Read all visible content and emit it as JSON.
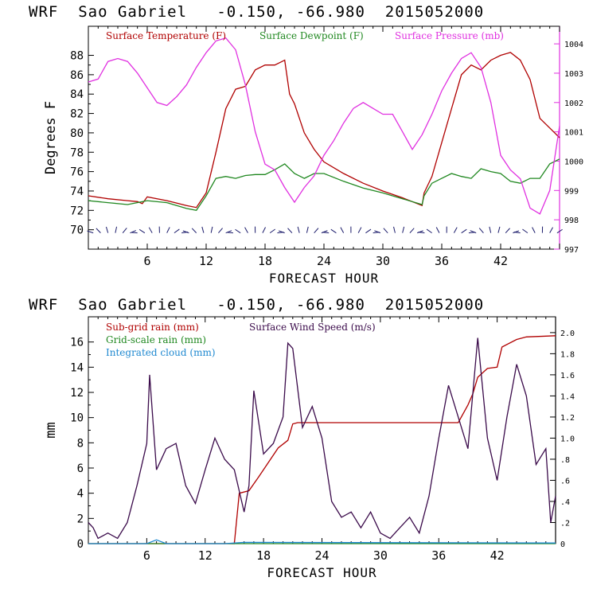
{
  "top_chart_title": "WRF  Sao Gabriel   -0.150, -66.980  2015052000",
  "bottom_chart_title": "WRF  Sao Gabriel   -0.150, -66.980  2015052000",
  "colors": {
    "temperature": "#b00000",
    "dewpoint": "#208820",
    "pressure": "#e030e0",
    "subgrid_rain": "#b00000",
    "gridscale_rain": "#208820",
    "integrated_cloud": "#1e88d0",
    "wind_speed": "#3a0a4a",
    "axis": "#000000"
  },
  "chart_data": [
    {
      "type": "line",
      "title": "WRF  Sao Gabriel   -0.150, -66.980  2015052000",
      "xlabel": "FORECAST HOUR",
      "ylabel": "Degrees F",
      "xlim": [
        0,
        48
      ],
      "ylim": [
        68,
        91
      ],
      "y2lim": [
        997,
        1004.6
      ],
      "xticks": [
        "6",
        "12",
        "18",
        "24",
        "30",
        "36",
        "42"
      ],
      "xtick_values": [
        6,
        12,
        18,
        24,
        30,
        36,
        42
      ],
      "yticks": [
        "70",
        "72",
        "74",
        "76",
        "78",
        "80",
        "82",
        "84",
        "86",
        "88"
      ],
      "ytick_values": [
        70,
        72,
        74,
        76,
        78,
        80,
        82,
        84,
        86,
        88
      ],
      "y2ticks": [
        "997",
        "998",
        "999",
        "1000",
        "1001",
        "1002",
        "1003",
        "1004"
      ],
      "y2tick_values": [
        997,
        998,
        999,
        1000,
        1001,
        1002,
        1003,
        1004
      ],
      "series": [
        {
          "name": "Surface Temperature (F)",
          "axis": "left",
          "x": [
            0,
            2,
            4,
            5,
            5.5,
            6,
            8,
            10,
            11,
            12,
            13,
            14,
            15,
            16,
            17,
            18,
            19,
            20,
            20.5,
            21,
            22,
            23,
            24,
            26,
            28,
            30,
            32,
            34,
            34.2,
            35,
            36,
            37,
            38,
            39,
            40,
            41,
            42,
            43,
            44,
            45,
            46,
            47,
            48
          ],
          "values": [
            73.5,
            73.2,
            73.0,
            72.9,
            72.7,
            73.4,
            73.0,
            72.5,
            72.3,
            73.8,
            78.0,
            82.5,
            84.5,
            84.8,
            86.5,
            87.0,
            87.0,
            87.5,
            84.0,
            83.0,
            80.0,
            78.3,
            77.0,
            75.8,
            74.8,
            74.0,
            73.3,
            72.5,
            73.8,
            75.5,
            79.0,
            82.5,
            86.0,
            87.0,
            86.5,
            87.5,
            88.0,
            88.3,
            87.5,
            85.5,
            81.5,
            80.5,
            79.5
          ]
        },
        {
          "name": "Surface Dewpoint (F)",
          "axis": "left",
          "x": [
            0,
            2,
            4,
            6,
            8,
            10,
            11,
            12,
            13,
            14,
            15,
            16,
            17,
            18,
            19,
            20,
            21,
            22,
            23,
            24,
            26,
            28,
            30,
            32,
            34,
            34.2,
            35,
            36,
            37,
            38,
            39,
            40,
            41,
            42,
            43,
            44,
            45,
            46,
            47,
            48
          ],
          "values": [
            73.0,
            72.8,
            72.6,
            73.0,
            72.8,
            72.2,
            72.0,
            73.5,
            75.3,
            75.5,
            75.3,
            75.6,
            75.7,
            75.7,
            76.2,
            76.8,
            75.8,
            75.3,
            75.8,
            75.8,
            75.0,
            74.3,
            73.8,
            73.2,
            72.6,
            73.5,
            74.8,
            75.3,
            75.8,
            75.5,
            75.3,
            76.3,
            76.0,
            75.8,
            75.0,
            74.8,
            75.3,
            75.3,
            76.8,
            77.3
          ]
        },
        {
          "name": "Surface Pressure (mb)",
          "axis": "right",
          "x": [
            0,
            1,
            2,
            3,
            4,
            5,
            6,
            7,
            8,
            9,
            10,
            11,
            12,
            13,
            14,
            15,
            16,
            17,
            18,
            19,
            20,
            21,
            22,
            23,
            24,
            25,
            26,
            27,
            28,
            29,
            30,
            31,
            32,
            33,
            34,
            35,
            36,
            37,
            38,
            39,
            40,
            41,
            42,
            43,
            44,
            45,
            46,
            47,
            48
          ],
          "values": [
            1002.7,
            1002.8,
            1003.4,
            1003.5,
            1003.4,
            1003.0,
            1002.5,
            1002.0,
            1001.9,
            1002.2,
            1002.6,
            1003.2,
            1003.7,
            1004.1,
            1004.2,
            1003.8,
            1002.6,
            1001.0,
            999.9,
            999.7,
            999.1,
            998.6,
            999.1,
            999.5,
            1000.2,
            1000.7,
            1001.3,
            1001.8,
            1002.0,
            1001.8,
            1001.6,
            1001.6,
            1001.0,
            1000.4,
            1000.9,
            1001.6,
            1002.4,
            1003.0,
            1003.5,
            1003.7,
            1003.2,
            1002.0,
            1000.2,
            999.7,
            999.4,
            998.4,
            998.2,
            999.0,
            1001.2
          ]
        }
      ],
      "wind_barbs_at_y": 70
    },
    {
      "type": "line",
      "title": "WRF  Sao Gabriel   -0.150, -66.980  2015052000",
      "xlabel": "FORECAST HOUR",
      "ylabel": "mm",
      "xlim": [
        0,
        48
      ],
      "ylim": [
        0,
        18
      ],
      "y2lim": [
        0,
        2.15
      ],
      "xticks": [
        "6",
        "12",
        "18",
        "24",
        "30",
        "36",
        "42"
      ],
      "xtick_values": [
        6,
        12,
        18,
        24,
        30,
        36,
        42
      ],
      "yticks": [
        "0",
        "2",
        "4",
        "6",
        "8",
        "10",
        "12",
        "14",
        "16"
      ],
      "ytick_values": [
        0,
        2,
        4,
        6,
        8,
        10,
        12,
        14,
        16
      ],
      "y2ticks": [
        "0",
        ".2",
        ".4",
        ".6",
        ".8",
        "1.0",
        "1.2",
        "1.4",
        "1.6",
        "1.8",
        "2.0"
      ],
      "y2tick_values": [
        0,
        0.2,
        0.4,
        0.6,
        0.8,
        1.0,
        1.2,
        1.4,
        1.6,
        1.8,
        2.0
      ],
      "series": [
        {
          "name": "Sub-grid rain (mm)",
          "axis": "left",
          "x": [
            0,
            15,
            15.5,
            16.5,
            17.5,
            19.5,
            20.5,
            21,
            21.5,
            22,
            38,
            39,
            39.5,
            40,
            41,
            42,
            42.5,
            44,
            45,
            48
          ],
          "values": [
            0,
            0,
            4.0,
            4.2,
            5.3,
            7.6,
            8.2,
            9.5,
            9.6,
            9.6,
            9.6,
            11.0,
            11.9,
            13.2,
            13.9,
            14.0,
            15.6,
            16.2,
            16.4,
            16.5
          ]
        },
        {
          "name": "Grid-scale rain (mm)",
          "axis": "left",
          "x": [
            0,
            48
          ],
          "values": [
            0,
            0
          ]
        },
        {
          "name": "Integrated cloud (mm)",
          "axis": "left",
          "x": [
            0,
            6,
            7,
            8,
            14,
            16,
            48
          ],
          "values": [
            0,
            0,
            0.3,
            0,
            0,
            0.1,
            0.05
          ]
        },
        {
          "name": "Surface Wind Speed (m/s)",
          "axis": "right",
          "x": [
            0,
            0.5,
            1,
            2,
            3,
            4,
            5,
            6,
            6.3,
            7,
            8,
            9,
            10,
            11,
            12,
            13,
            14,
            15,
            16,
            16.5,
            17,
            18,
            19,
            20,
            20.5,
            21,
            22,
            23,
            24,
            25,
            26,
            27,
            28,
            29,
            30,
            31,
            32,
            33,
            34,
            35,
            36,
            37,
            38,
            39,
            40,
            41,
            42,
            43,
            44,
            45,
            46,
            47,
            47.5,
            48
          ],
          "values": [
            0.2,
            0.15,
            0.05,
            0.1,
            0.05,
            0.2,
            0.55,
            0.95,
            1.6,
            0.7,
            0.9,
            0.95,
            0.55,
            0.38,
            0.7,
            1.0,
            0.8,
            0.7,
            0.3,
            0.55,
            1.45,
            0.85,
            0.95,
            1.2,
            1.9,
            1.85,
            1.1,
            1.3,
            1.0,
            0.4,
            0.25,
            0.3,
            0.15,
            0.3,
            0.1,
            0.05,
            0.15,
            0.25,
            0.1,
            0.45,
            1.0,
            1.5,
            1.2,
            0.9,
            1.95,
            1.0,
            0.6,
            1.2,
            1.7,
            1.4,
            0.75,
            0.9,
            0.2,
            0.45
          ]
        }
      ]
    }
  ]
}
